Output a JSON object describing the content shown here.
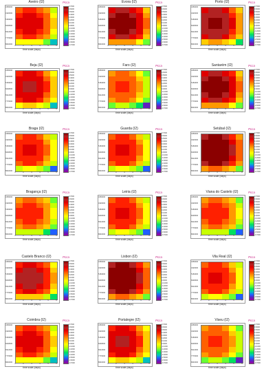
{
  "colorbar": {
    "title": "Pcca",
    "labels": [
      "0.7000",
      "0.6000",
      "0.5000",
      "0.4000",
      "0.3000",
      "0.2000",
      "0.1000",
      "0.0000",
      "-0.1000",
      "-0.2000",
      "-0.3000",
      "-0.4000",
      "-0.5000",
      "-0.6000",
      "-0.7000"
    ],
    "colors": [
      "#8b0000",
      "#b22222",
      "#e00000",
      "#ff2000",
      "#ff6000",
      "#ff9900",
      "#ffcc00",
      "#ffff00",
      "#c8ff00",
      "#66ff33",
      "#00e060",
      "#00c0c0",
      "#2060ff",
      "#6020c0",
      "#a000a0"
    ]
  },
  "axes": {
    "xlabel": "time scale (days)",
    "xticks": [
      "1",
      "2",
      "3",
      "4",
      "5",
      "6"
    ],
    "yticks": [
      "3456000",
      "4320000",
      "5184000",
      "6048000",
      "6912000",
      "7776000",
      "8640000"
    ]
  },
  "chart_data": {
    "type": "heatmap",
    "value_range": [
      -0.7,
      0.7
    ],
    "panels": [
      {
        "title": "Aveiro (I2)",
        "bias": 0.2
      },
      {
        "title": "Évora (I2)",
        "bias": 0.4
      },
      {
        "title": "Porto (I2)",
        "bias": 0.35
      },
      {
        "title": "Beja (I2)",
        "bias": 0.25
      },
      {
        "title": "Faro (I2)",
        "bias": 0.05
      },
      {
        "title": "Santarém (I2)",
        "bias": 0.4
      },
      {
        "title": "Braga (I2)",
        "bias": 0.15
      },
      {
        "title": "Guarda (I2)",
        "bias": 0.15
      },
      {
        "title": "Setúbal (I2)",
        "bias": 0.45
      },
      {
        "title": "Bragança (I2)",
        "bias": 0.1
      },
      {
        "title": "Leiria (I2)",
        "bias": 0.15
      },
      {
        "title": "Viana do Castelo (I2)",
        "bias": 0.1
      },
      {
        "title": "Castelo Branco (I2)",
        "bias": 0.3
      },
      {
        "title": "Lisbon (I2)",
        "bias": 0.45
      },
      {
        "title": "Vila Real (I2)",
        "bias": 0.15
      },
      {
        "title": "Coimbra (I2)",
        "bias": 0.2
      },
      {
        "title": "Portalegre (I2)",
        "bias": 0.25
      },
      {
        "title": "Viseu (I2)",
        "bias": 0.05
      }
    ]
  }
}
